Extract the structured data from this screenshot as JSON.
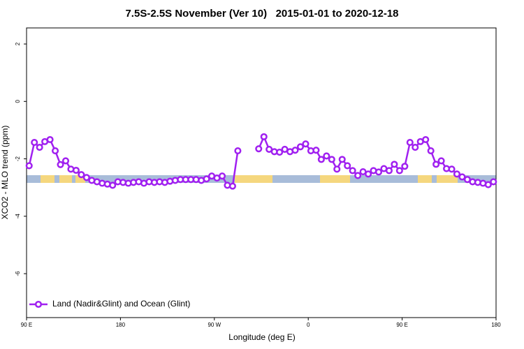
{
  "chart_data": {
    "type": "line",
    "title": "7.5S-2.5S November (Ver 10)   2015-01-01 to 2020-12-18",
    "xlabel": "Longitude (deg E)",
    "ylabel": "XCO2 - MLO trend (ppm)",
    "xlim": [
      90,
      540
    ],
    "xticks": [
      {
        "value": 90,
        "label": "90 E"
      },
      180,
      {
        "value": 270,
        "label": "90 W"
      },
      {
        "value": 360,
        "label": "0"
      },
      {
        "value": 450,
        "label": "90 E"
      },
      {
        "value": 540,
        "label": "180"
      }
    ],
    "ylim": [
      -7.53,
      2.56
    ],
    "yticks": [
      2,
      0,
      -2,
      -4,
      -6
    ],
    "legend": "bottom-left",
    "x": [
      92.5,
      97.5,
      102.5,
      107.5,
      112.5,
      117.5,
      122.5,
      127.5,
      132.5,
      137.5,
      142.5,
      147.5,
      152.5,
      157.5,
      162.5,
      167.5,
      172.5,
      177.5,
      182.5,
      187.5,
      192.5,
      197.5,
      202.5,
      207.5,
      212.5,
      217.5,
      222.5,
      227.5,
      232.5,
      237.5,
      242.5,
      247.5,
      252.5,
      257.5,
      262.5,
      267.5,
      272.5,
      277.5,
      282.5,
      287.5,
      292.5,
      300,
      312.5,
      317.5,
      322.5,
      327.5,
      332.5,
      337.5,
      342.5,
      347.5,
      352.5,
      357.5,
      362.5,
      367.5,
      372.5,
      377.5,
      382.5,
      387.5,
      392.5,
      397.5,
      402.5,
      407.5,
      412.5,
      417.5,
      422.5,
      427.5,
      432.5,
      437.5,
      442.5,
      447.5,
      452.5,
      457.5,
      462.5,
      467.5,
      472.5,
      477.5,
      482.5,
      487.5,
      492.5,
      497.5,
      502.5,
      507.5,
      512.5,
      517.5,
      522.5,
      527.5,
      532.5,
      537.5
    ],
    "series": [
      {
        "name": "Land (Nadir&Glint) and Ocean (Glint)",
        "color": "#a020f0",
        "values": [
          -2.24,
          -1.43,
          -1.6,
          -1.4,
          -1.33,
          -1.72,
          -2.2,
          -2.07,
          -2.36,
          -2.4,
          -2.55,
          -2.65,
          -2.75,
          -2.8,
          -2.85,
          -2.88,
          -2.92,
          -2.8,
          -2.82,
          -2.85,
          -2.82,
          -2.8,
          -2.85,
          -2.8,
          -2.82,
          -2.8,
          -2.82,
          -2.78,
          -2.75,
          -2.72,
          -2.72,
          -2.72,
          -2.72,
          -2.75,
          -2.7,
          -2.6,
          -2.67,
          -2.6,
          -2.92,
          -2.95,
          -1.72,
          null,
          -1.65,
          -1.23,
          -1.67,
          -1.75,
          -1.77,
          -1.67,
          -1.75,
          -1.7,
          -1.58,
          -1.48,
          -1.72,
          -1.7,
          -2.02,
          -1.9,
          -2.02,
          -2.36,
          -2.02,
          -2.24,
          -2.41,
          -2.58,
          -2.45,
          -2.53,
          -2.41,
          -2.46,
          -2.34,
          -2.41,
          -2.19,
          -2.41,
          -2.26,
          -1.43,
          -1.6,
          -1.4,
          -1.33,
          -1.72,
          -2.19,
          -2.07,
          -2.34,
          -2.36,
          -2.53,
          -2.63,
          -2.72,
          -2.8,
          -2.82,
          -2.85,
          -2.9,
          -2.8
        ]
      }
    ]
  }
}
